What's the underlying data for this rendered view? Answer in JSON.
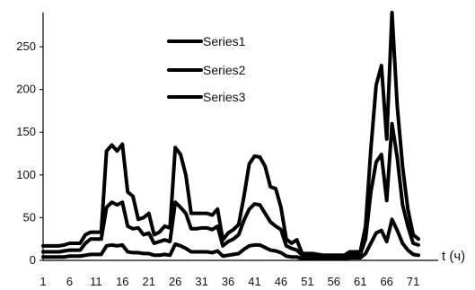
{
  "chart_data": {
    "type": "line",
    "x_start": 1,
    "x_end": 72,
    "xlabel": "t (ч)",
    "ylabel": "",
    "ylim": [
      0,
      290
    ],
    "y_ticks": [
      "0",
      "50",
      "100",
      "150",
      "200",
      "250"
    ],
    "x_ticks": [
      "1",
      "6",
      "11",
      "16",
      "21",
      "26",
      "31",
      "36",
      "41",
      "46",
      "51",
      "56",
      "61",
      "66",
      "71"
    ],
    "legend_position": "upper-center",
    "series": [
      {
        "name": "Series1",
        "color": "#000000",
        "values": [
          17,
          17,
          17,
          17,
          18,
          20,
          20,
          20,
          30,
          33,
          33,
          33,
          128,
          135,
          128,
          136,
          80,
          75,
          48,
          50,
          55,
          30,
          33,
          40,
          38,
          132,
          124,
          100,
          55,
          55,
          55,
          55,
          53,
          60,
          24,
          32,
          36,
          42,
          75,
          113,
          122,
          121,
          110,
          86,
          84,
          62,
          25,
          20,
          24,
          8,
          8,
          8,
          7,
          6,
          6,
          6,
          6,
          6,
          10,
          10,
          10,
          40,
          130,
          205,
          228,
          142,
          290,
          180,
          110,
          60,
          30,
          25
        ]
      },
      {
        "name": "Series2",
        "color": "#000000",
        "values": [
          10,
          10,
          10,
          10,
          11,
          12,
          12,
          12,
          20,
          25,
          25,
          25,
          62,
          68,
          65,
          68,
          40,
          37,
          38,
          30,
          32,
          20,
          22,
          24,
          22,
          68,
          62,
          55,
          37,
          37,
          38,
          38,
          36,
          40,
          17,
          22,
          25,
          30,
          47,
          60,
          66,
          65,
          55,
          45,
          40,
          36,
          17,
          14,
          12,
          6,
          6,
          6,
          5,
          5,
          5,
          5,
          5,
          5,
          7,
          7,
          7,
          25,
          80,
          115,
          124,
          70,
          160,
          120,
          65,
          40,
          20,
          18
        ]
      },
      {
        "name": "Series3",
        "color": "#000000",
        "values": [
          4,
          4,
          4,
          4,
          4,
          5,
          5,
          5,
          6,
          7,
          7,
          7,
          17,
          18,
          17,
          18,
          10,
          9,
          9,
          8,
          8,
          6,
          6,
          7,
          6,
          19,
          17,
          14,
          10,
          10,
          10,
          10,
          9,
          11,
          5,
          6,
          7,
          8,
          13,
          17,
          18,
          18,
          15,
          12,
          11,
          9,
          5,
          4,
          4,
          2,
          2,
          2,
          2,
          2,
          2,
          2,
          2,
          2,
          3,
          3,
          3,
          8,
          20,
          32,
          35,
          22,
          48,
          35,
          20,
          12,
          7,
          6
        ]
      }
    ]
  }
}
